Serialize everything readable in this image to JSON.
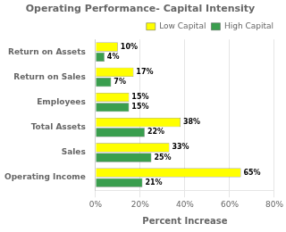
{
  "chart_data": {
    "type": "bar",
    "orientation": "horizontal",
    "title": "Operating Performance- Capital Intensity",
    "categories": [
      "Return on Assets",
      "Return on Sales",
      "Employees",
      "Total Assets",
      "Sales",
      "Operating Income"
    ],
    "series": [
      {
        "name": "Low Capital",
        "color": "#ffff00",
        "values": [
          10,
          17,
          15,
          38,
          33,
          65
        ],
        "value_labels": [
          "10%",
          "17%",
          "15%",
          "38%",
          "33%",
          "65%"
        ]
      },
      {
        "name": "High Capital",
        "color": "#3a9e4e",
        "values": [
          4,
          7,
          15,
          22,
          25,
          21
        ],
        "value_labels": [
          "4%",
          "7%",
          "15%",
          "22%",
          "25%",
          "21%"
        ]
      }
    ],
    "xlabel": "Percent Increase",
    "xlim": [
      0,
      80
    ],
    "xticks": [
      {
        "value": 0,
        "label": "0%"
      },
      {
        "value": 20,
        "label": "20%"
      },
      {
        "value": 40,
        "label": "40%"
      },
      {
        "value": 60,
        "label": "60%"
      },
      {
        "value": 80,
        "label": "80%"
      }
    ],
    "grid": true,
    "legend": "upper right",
    "data_labels": true
  }
}
